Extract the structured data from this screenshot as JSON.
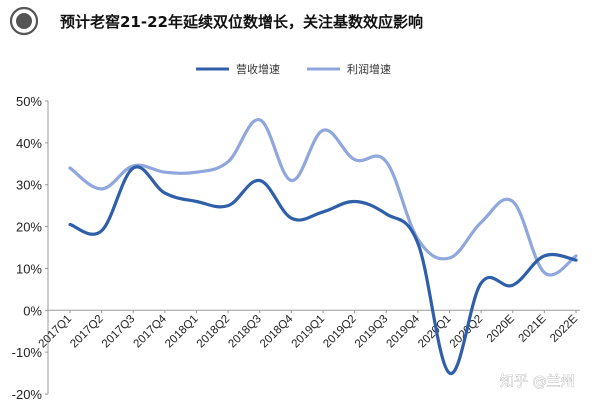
{
  "header": {
    "title": "预计老窖21-22年延续双位数增长，关注基数效应影响"
  },
  "watermark": {
    "text": "知乎 @兰州"
  },
  "colors": {
    "series_revenue": "#2e5fa8",
    "series_profit": "#8fa7dc",
    "badge_ring": "#555555",
    "axis": "#888888"
  },
  "chart_data": {
    "type": "line",
    "title": "预计老窖21-22年延续双位数增长，关注基数效应影响",
    "xlabel": "",
    "ylabel": "",
    "ylim": [
      -20,
      50
    ],
    "yticks": [
      "-20%",
      "-10%",
      "0%",
      "10%",
      "20%",
      "30%",
      "40%",
      "50%"
    ],
    "yticks_values": [
      -20,
      -10,
      0,
      10,
      20,
      30,
      40,
      50
    ],
    "grid": false,
    "legend_position": "top",
    "categories": [
      "2017Q1",
      "2017Q2",
      "2017Q3",
      "2017Q4",
      "2018Q1",
      "2018Q2",
      "2018Q3",
      "2018Q4",
      "2019Q1",
      "2019Q2",
      "2019Q3",
      "2019Q4",
      "2020Q1",
      "2020Q2",
      "2020E",
      "2021E",
      "2022E"
    ],
    "series": [
      {
        "name": "营收增速",
        "values": [
          20.5,
          19,
          34,
          28,
          26,
          25,
          31,
          22,
          23.5,
          26,
          23,
          16,
          -15,
          6.5,
          6,
          13,
          12
        ]
      },
      {
        "name": "利润增速",
        "values": [
          34,
          29,
          34.5,
          33,
          33,
          35.5,
          45.5,
          31,
          43,
          36,
          35.5,
          17,
          12.5,
          21,
          26,
          9,
          13
        ]
      }
    ]
  }
}
